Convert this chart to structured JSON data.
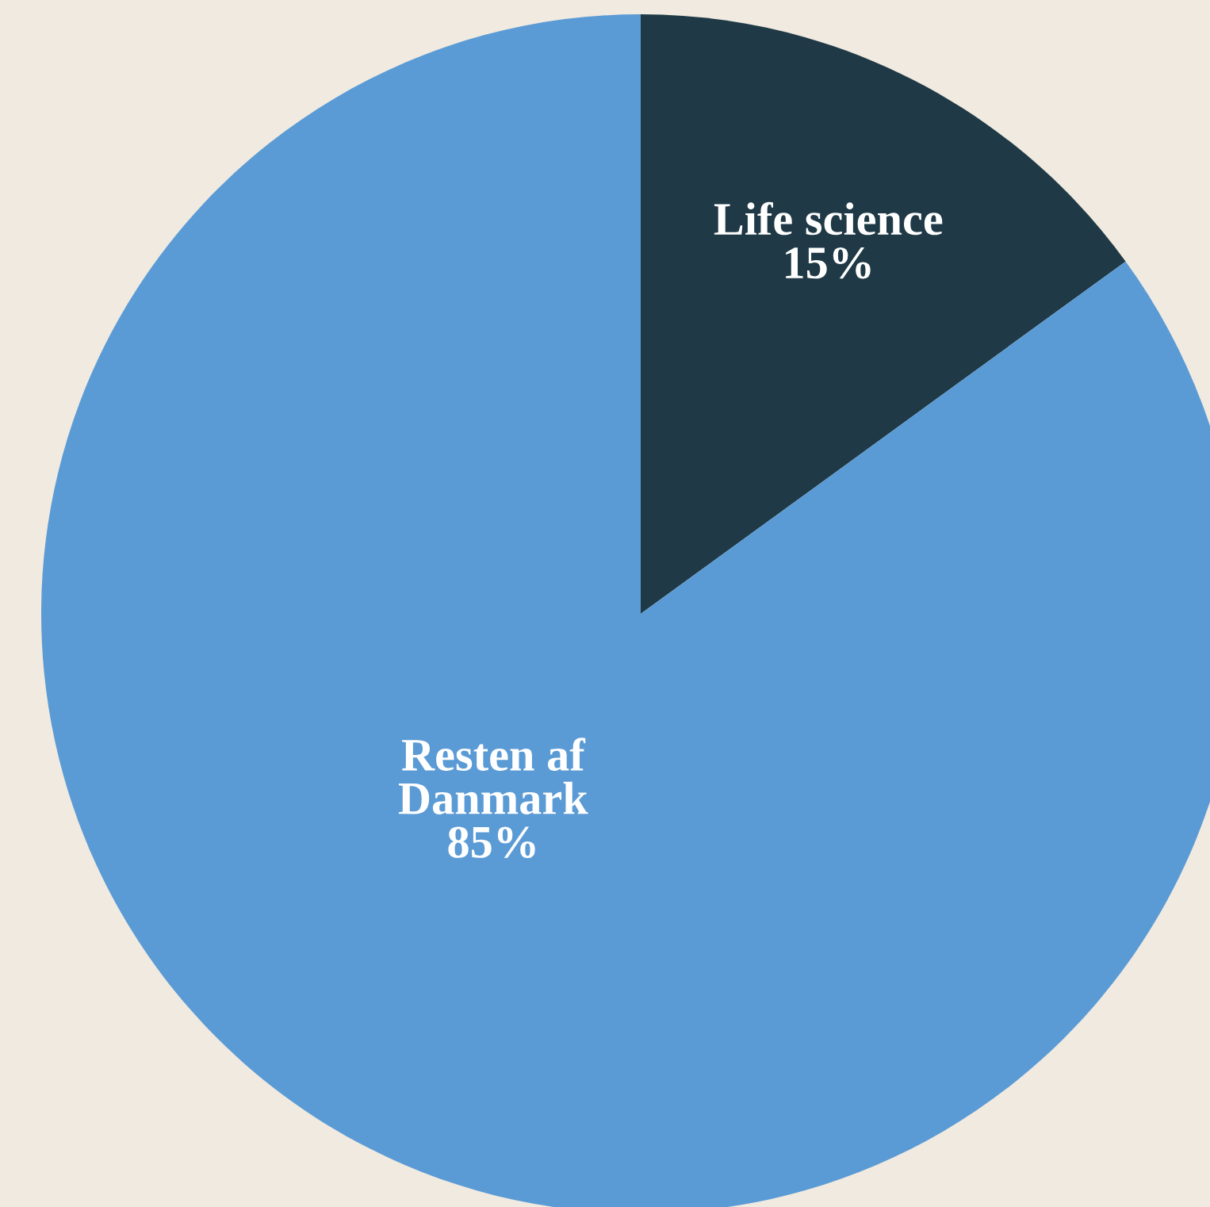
{
  "chart_data": {
    "type": "pie",
    "categories": [
      "Life science",
      "Resten af\nDanmark"
    ],
    "values": [
      15,
      85
    ],
    "colors": [
      "#1f3a46",
      "#5b9bd5"
    ],
    "value_labels": [
      "15%",
      "85%"
    ],
    "legend": false
  }
}
